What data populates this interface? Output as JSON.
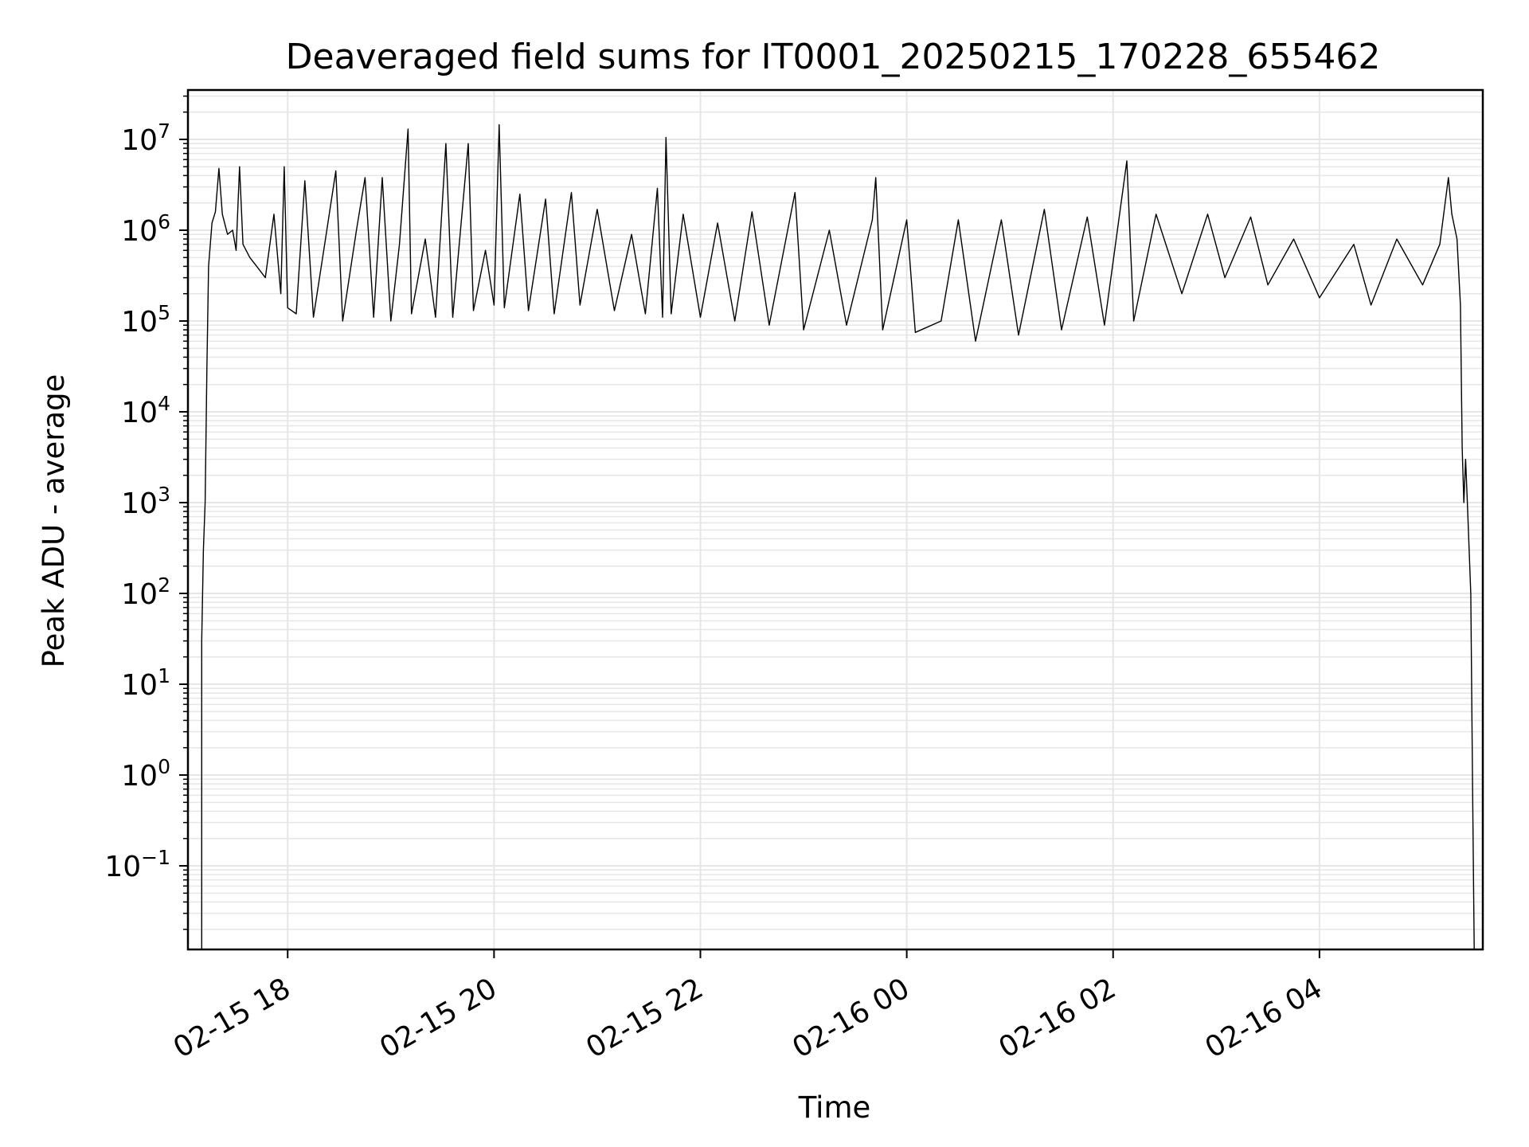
{
  "chart_data": {
    "type": "line",
    "title": "Deaveraged field sums for IT0001_20250215_170228_655462",
    "xlabel": "Time",
    "ylabel": "Peak ADU - average",
    "yscale": "log",
    "ylim": [
      0.012,
      35000000
    ],
    "xlim": [
      "2025-02-15 17:02",
      "2025-02-16 05:35"
    ],
    "grid": true,
    "line_color": "#000000",
    "grid_color": "#e6e6e6",
    "x_ticks": [
      {
        "value": "2025-02-15 18:00",
        "label": "02-15 18"
      },
      {
        "value": "2025-02-15 20:00",
        "label": "02-15 20"
      },
      {
        "value": "2025-02-15 22:00",
        "label": "02-15 22"
      },
      {
        "value": "2025-02-16 00:00",
        "label": "02-16 00"
      },
      {
        "value": "2025-02-16 02:00",
        "label": "02-16 02"
      },
      {
        "value": "2025-02-16 04:00",
        "label": "02-16 04"
      }
    ],
    "y_ticks": [
      {
        "value": 0.1,
        "base": "10",
        "exp": "−1"
      },
      {
        "value": 1,
        "base": "10",
        "exp": "0"
      },
      {
        "value": 10,
        "base": "10",
        "exp": "1"
      },
      {
        "value": 100,
        "base": "10",
        "exp": "2"
      },
      {
        "value": 1000,
        "base": "10",
        "exp": "3"
      },
      {
        "value": 10000,
        "base": "10",
        "exp": "4"
      },
      {
        "value": 100000,
        "base": "10",
        "exp": "5"
      },
      {
        "value": 1000000,
        "base": "10",
        "exp": "6"
      },
      {
        "value": 10000000,
        "base": "10",
        "exp": "7"
      }
    ],
    "series": [
      {
        "points": [
          [
            "2025-02-15 17:10",
            0.012
          ],
          [
            "2025-02-15 17:10",
            30
          ],
          [
            "2025-02-15 17:11",
            300
          ],
          [
            "2025-02-15 17:12",
            1000
          ],
          [
            "2025-02-15 17:13",
            30000
          ],
          [
            "2025-02-15 17:14",
            400000
          ],
          [
            "2025-02-15 17:16",
            1200000
          ],
          [
            "2025-02-15 17:18",
            1600000
          ],
          [
            "2025-02-15 17:20",
            4800000
          ],
          [
            "2025-02-15 17:22",
            1500000
          ],
          [
            "2025-02-15 17:25",
            900000
          ],
          [
            "2025-02-15 17:28",
            1000000
          ],
          [
            "2025-02-15 17:30",
            600000
          ],
          [
            "2025-02-15 17:32",
            5000000
          ],
          [
            "2025-02-15 17:34",
            700000
          ],
          [
            "2025-02-15 17:38",
            500000
          ],
          [
            "2025-02-15 17:42",
            400000
          ],
          [
            "2025-02-15 17:47",
            300000
          ],
          [
            "2025-02-15 17:52",
            1500000
          ],
          [
            "2025-02-15 17:56",
            200000
          ],
          [
            "2025-02-15 17:58",
            5000000
          ],
          [
            "2025-02-15 18:00",
            140000
          ],
          [
            "2025-02-15 18:05",
            120000
          ],
          [
            "2025-02-15 18:10",
            3500000
          ],
          [
            "2025-02-15 18:15",
            110000
          ],
          [
            "2025-02-15 18:22",
            800000
          ],
          [
            "2025-02-15 18:28",
            4500000
          ],
          [
            "2025-02-15 18:32",
            100000
          ],
          [
            "2025-02-15 18:40",
            1000000
          ],
          [
            "2025-02-15 18:45",
            3800000
          ],
          [
            "2025-02-15 18:50",
            110000
          ],
          [
            "2025-02-15 18:55",
            3800000
          ],
          [
            "2025-02-15 19:00",
            100000
          ],
          [
            "2025-02-15 19:05",
            700000
          ],
          [
            "2025-02-15 19:10",
            13000000
          ],
          [
            "2025-02-15 19:12",
            120000
          ],
          [
            "2025-02-15 19:20",
            800000
          ],
          [
            "2025-02-15 19:26",
            110000
          ],
          [
            "2025-02-15 19:32",
            9000000
          ],
          [
            "2025-02-15 19:36",
            110000
          ],
          [
            "2025-02-15 19:45",
            9000000
          ],
          [
            "2025-02-15 19:48",
            130000
          ],
          [
            "2025-02-15 19:55",
            600000
          ],
          [
            "2025-02-15 20:00",
            150000
          ],
          [
            "2025-02-15 20:03",
            14500000
          ],
          [
            "2025-02-15 20:06",
            140000
          ],
          [
            "2025-02-15 20:15",
            2500000
          ],
          [
            "2025-02-15 20:20",
            130000
          ],
          [
            "2025-02-15 20:30",
            2200000
          ],
          [
            "2025-02-15 20:35",
            120000
          ],
          [
            "2025-02-15 20:45",
            2600000
          ],
          [
            "2025-02-15 20:50",
            150000
          ],
          [
            "2025-02-15 21:00",
            1700000
          ],
          [
            "2025-02-15 21:10",
            130000
          ],
          [
            "2025-02-15 21:20",
            900000
          ],
          [
            "2025-02-15 21:28",
            120000
          ],
          [
            "2025-02-15 21:35",
            2900000
          ],
          [
            "2025-02-15 21:38",
            110000
          ],
          [
            "2025-02-15 21:40",
            10500000
          ],
          [
            "2025-02-15 21:43",
            120000
          ],
          [
            "2025-02-15 21:50",
            1500000
          ],
          [
            "2025-02-15 22:00",
            110000
          ],
          [
            "2025-02-15 22:10",
            1200000
          ],
          [
            "2025-02-15 22:20",
            100000
          ],
          [
            "2025-02-15 22:30",
            1600000
          ],
          [
            "2025-02-15 22:40",
            90000
          ],
          [
            "2025-02-15 22:55",
            2600000
          ],
          [
            "2025-02-15 23:00",
            80000
          ],
          [
            "2025-02-15 23:15",
            1000000
          ],
          [
            "2025-02-15 23:25",
            90000
          ],
          [
            "2025-02-15 23:40",
            1300000
          ],
          [
            "2025-02-15 23:42",
            3800000
          ],
          [
            "2025-02-15 23:46",
            80000
          ],
          [
            "2025-02-16 00:00",
            1300000
          ],
          [
            "2025-02-16 00:05",
            75000
          ],
          [
            "2025-02-16 00:20",
            100000
          ],
          [
            "2025-02-16 00:30",
            1300000
          ],
          [
            "2025-02-16 00:40",
            60000
          ],
          [
            "2025-02-16 00:55",
            1300000
          ],
          [
            "2025-02-16 01:05",
            70000
          ],
          [
            "2025-02-16 01:20",
            1700000
          ],
          [
            "2025-02-16 01:30",
            80000
          ],
          [
            "2025-02-16 01:45",
            1400000
          ],
          [
            "2025-02-16 01:55",
            90000
          ],
          [
            "2025-02-16 02:08",
            5800000
          ],
          [
            "2025-02-16 02:12",
            100000
          ],
          [
            "2025-02-16 02:25",
            1500000
          ],
          [
            "2025-02-16 02:40",
            200000
          ],
          [
            "2025-02-16 02:55",
            1500000
          ],
          [
            "2025-02-16 03:05",
            300000
          ],
          [
            "2025-02-16 03:20",
            1400000
          ],
          [
            "2025-02-16 03:30",
            250000
          ],
          [
            "2025-02-16 03:45",
            800000
          ],
          [
            "2025-02-16 04:00",
            180000
          ],
          [
            "2025-02-16 04:20",
            700000
          ],
          [
            "2025-02-16 04:30",
            150000
          ],
          [
            "2025-02-16 04:45",
            800000
          ],
          [
            "2025-02-16 05:00",
            250000
          ],
          [
            "2025-02-16 05:10",
            700000
          ],
          [
            "2025-02-16 05:15",
            3800000
          ],
          [
            "2025-02-16 05:17",
            1500000
          ],
          [
            "2025-02-16 05:20",
            800000
          ],
          [
            "2025-02-16 05:22",
            150000
          ],
          [
            "2025-02-16 05:23",
            4000
          ],
          [
            "2025-02-16 05:24",
            1000
          ],
          [
            "2025-02-16 05:25",
            3000
          ],
          [
            "2025-02-16 05:26",
            1000
          ],
          [
            "2025-02-16 05:28",
            100
          ],
          [
            "2025-02-16 05:29",
            1
          ],
          [
            "2025-02-16 05:30",
            0.012
          ]
        ]
      }
    ]
  }
}
